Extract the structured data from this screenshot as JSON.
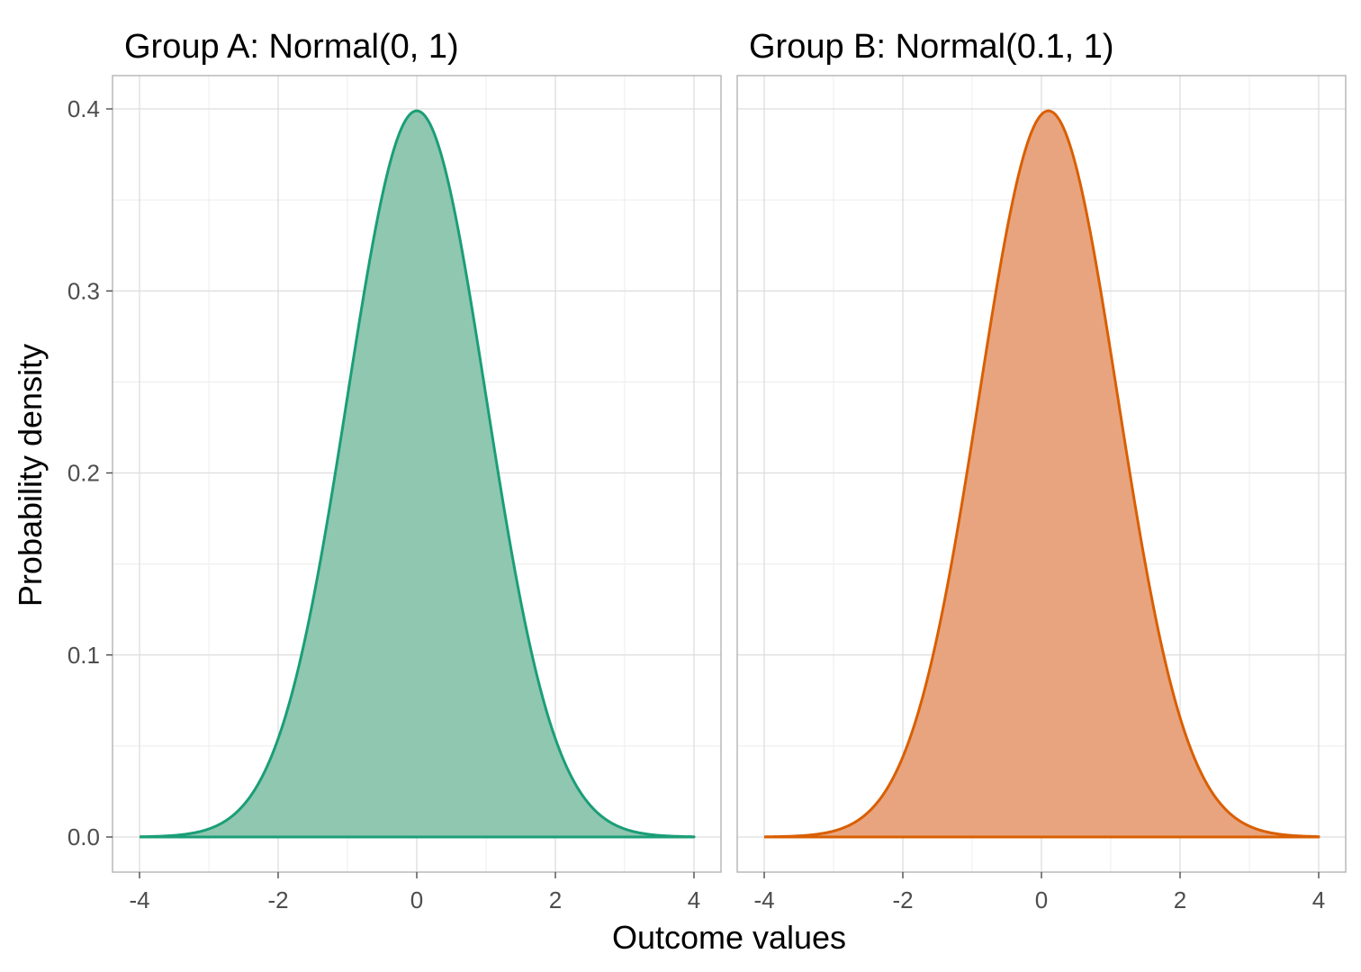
{
  "chart_data": {
    "type": "area",
    "xlabel": "Outcome values",
    "ylabel": "Probability density",
    "xlim": [
      -4,
      4
    ],
    "ylim": [
      0,
      0.4
    ],
    "x_ticks": [
      "-4",
      "-2",
      "0",
      "2",
      "4"
    ],
    "y_ticks": [
      "0.0",
      "0.1",
      "0.2",
      "0.3",
      "0.4"
    ],
    "grid": true,
    "legend": "none",
    "panels": [
      {
        "title": "Group A:  Normal(0, 1)",
        "distribution": "normal",
        "mean": 0,
        "sd": 1,
        "color": "#1b9e77",
        "fill": "#8fc7b0"
      },
      {
        "title": "Group B:  Normal(0.1, 1)",
        "distribution": "normal",
        "mean": 0.1,
        "sd": 1,
        "color": "#d95f02",
        "fill": "#e8a47e"
      }
    ]
  }
}
